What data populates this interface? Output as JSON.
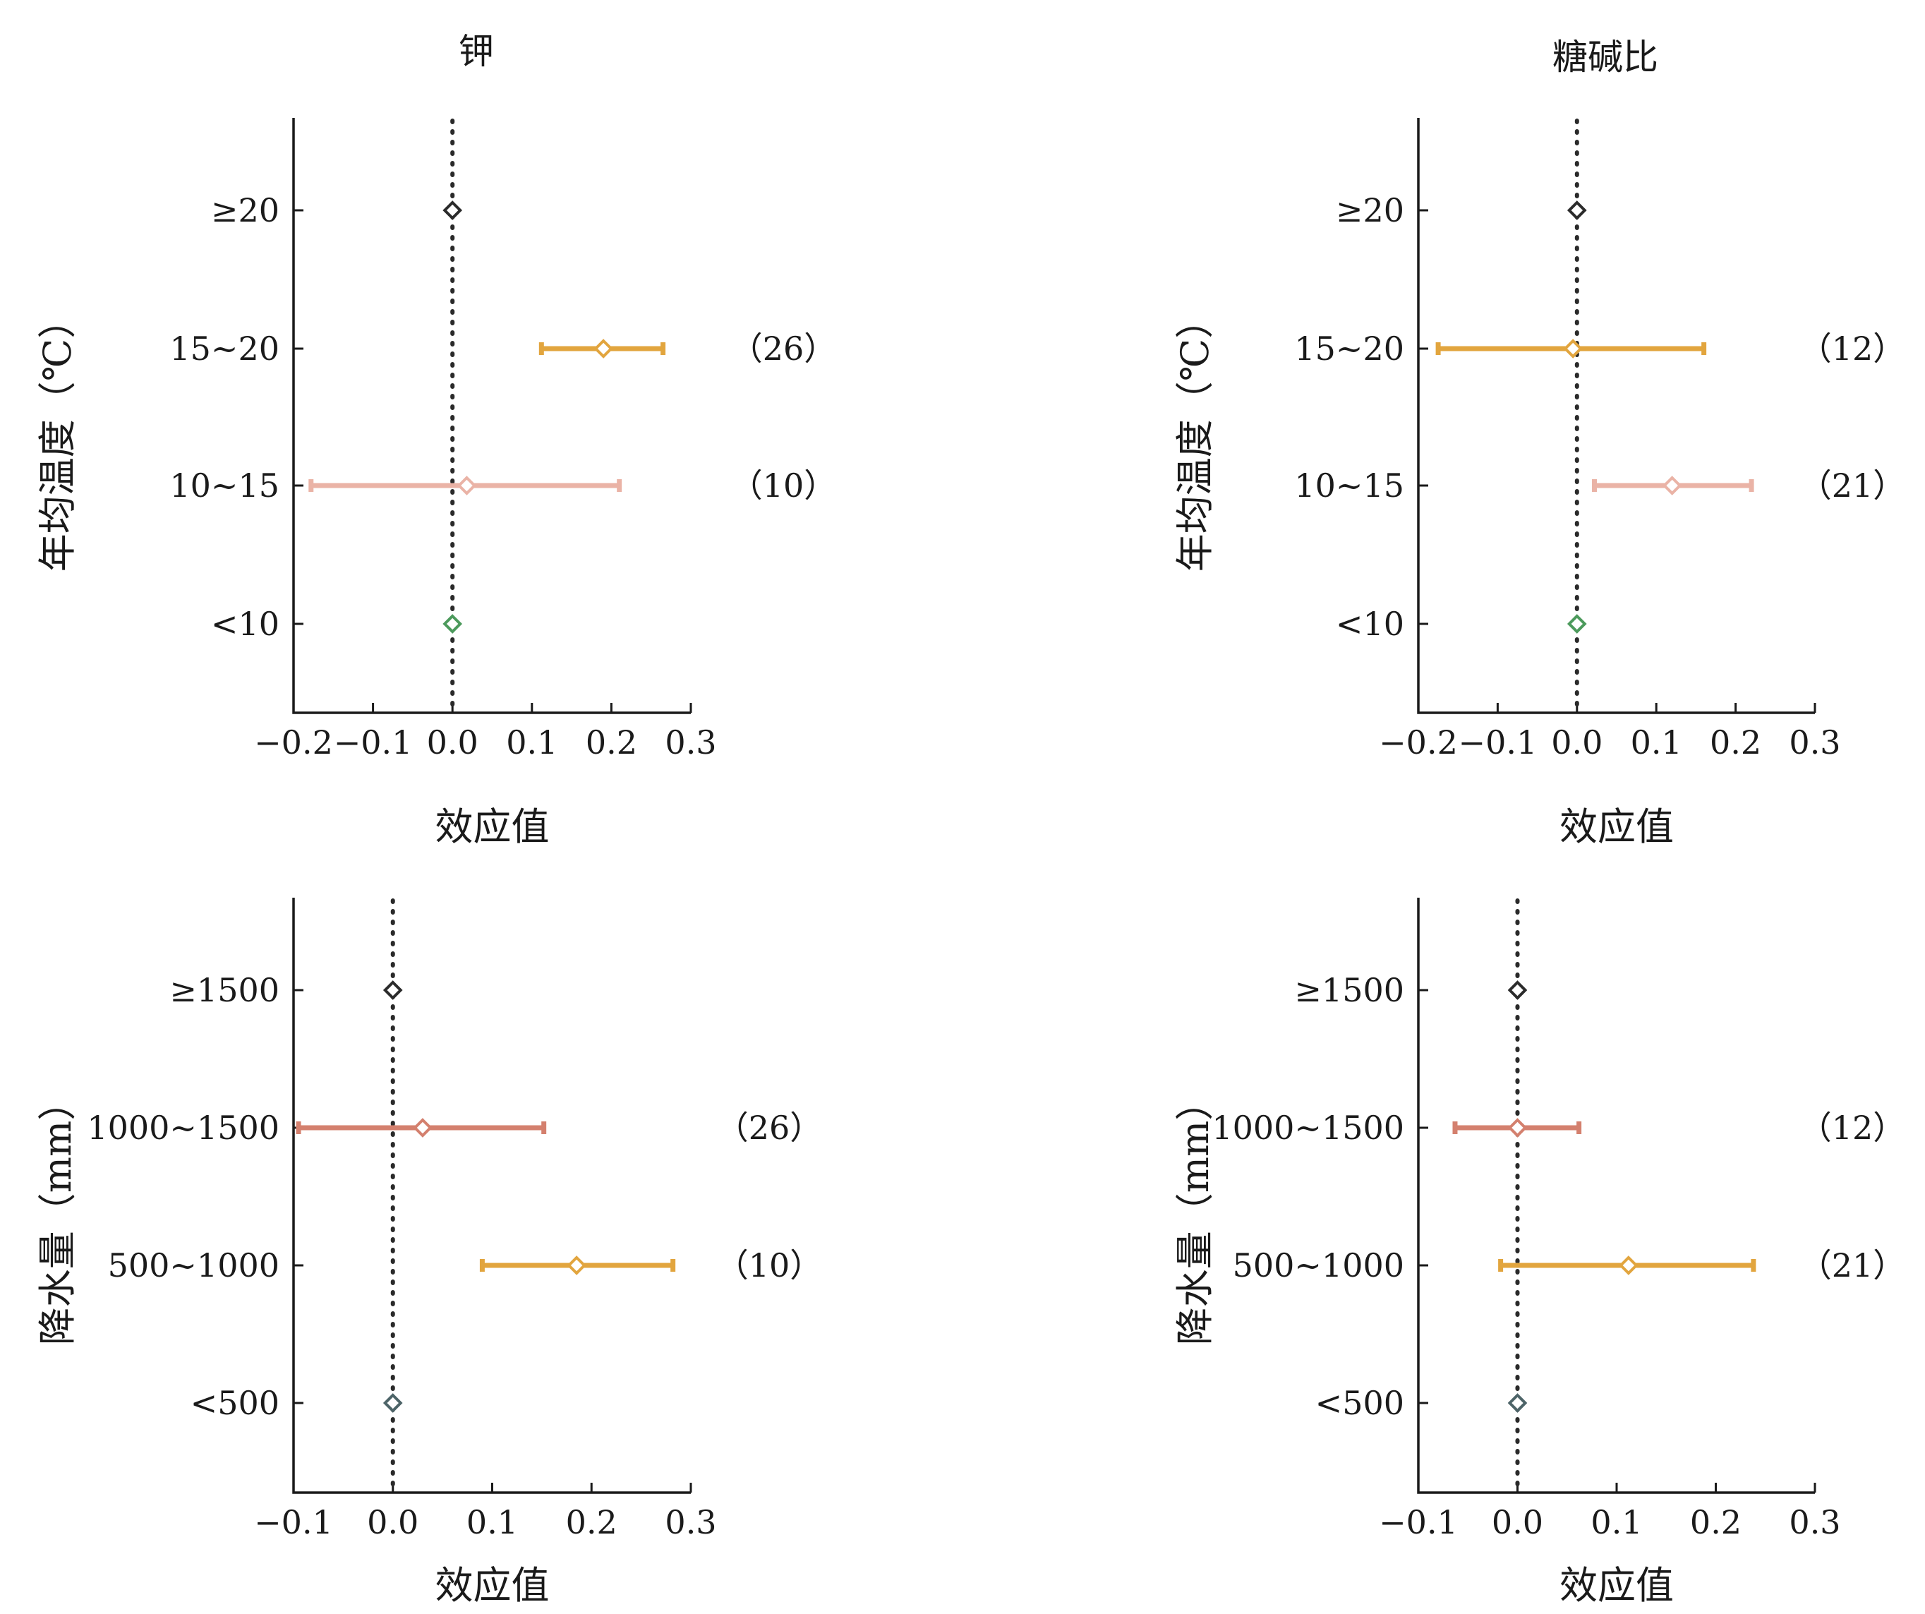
{
  "chart_data": [
    {
      "type": "forest",
      "title": "钾",
      "xlabel": "效应值",
      "ylabel": "年均温度（℃）",
      "xlim": [
        -0.2,
        0.3
      ],
      "xticks": [
        "−0.2",
        "−0.1",
        "0.0",
        "0.1",
        "0.2",
        "0.3"
      ],
      "categories": [
        "≥20",
        "15~20",
        "10~15",
        "<10"
      ],
      "points": [
        {
          "category": "≥20",
          "mean": 0.0,
          "lower": null,
          "upper": null,
          "color": "#2b2b2b",
          "count": ""
        },
        {
          "category": "15~20",
          "mean": 0.19,
          "lower": 0.112,
          "upper": 0.265,
          "color": "#e2a53e",
          "count": "（26）"
        },
        {
          "category": "10~15",
          "mean": 0.018,
          "lower": -0.178,
          "upper": 0.21,
          "color": "#eab3a6",
          "count": "（10）"
        },
        {
          "category": "<10",
          "mean": 0.0,
          "lower": null,
          "upper": null,
          "color": "#4c9a5c",
          "count": ""
        }
      ]
    },
    {
      "type": "forest",
      "title": "糖碱比",
      "xlabel": "效应值",
      "ylabel": "年均温度（℃）",
      "xlim": [
        -0.2,
        0.3
      ],
      "xticks": [
        "−0.2",
        "−0.1",
        "0.0",
        "0.1",
        "0.2",
        "0.3"
      ],
      "categories": [
        "≥20",
        "15~20",
        "10~15",
        "<10"
      ],
      "points": [
        {
          "category": "≥20",
          "mean": 0.0,
          "lower": null,
          "upper": null,
          "color": "#2b2b2b",
          "count": ""
        },
        {
          "category": "15~20",
          "mean": -0.005,
          "lower": -0.175,
          "upper": 0.16,
          "color": "#e2a53e",
          "count": "（12）"
        },
        {
          "category": "10~15",
          "mean": 0.12,
          "lower": 0.022,
          "upper": 0.22,
          "color": "#eab3a6",
          "count": "（21）"
        },
        {
          "category": "<10",
          "mean": 0.0,
          "lower": null,
          "upper": null,
          "color": "#4c9a5c",
          "count": ""
        }
      ]
    },
    {
      "type": "forest",
      "title": "",
      "xlabel": "效应值",
      "ylabel": "降水量（mm）",
      "xlim": [
        -0.1,
        0.3
      ],
      "xticks": [
        "−0.1",
        "0.0",
        "0.1",
        "0.2",
        "0.3"
      ],
      "categories": [
        "≥1500",
        "1000~1500",
        "500~1000",
        "<500"
      ],
      "points": [
        {
          "category": "≥1500",
          "mean": 0.0,
          "lower": null,
          "upper": null,
          "color": "#2b2b2b",
          "count": ""
        },
        {
          "category": "1000~1500",
          "mean": 0.03,
          "lower": -0.095,
          "upper": 0.152,
          "color": "#d4806e",
          "count": "（26）"
        },
        {
          "category": "500~1000",
          "mean": 0.185,
          "lower": 0.09,
          "upper": 0.282,
          "color": "#e2a53e",
          "count": "（10）"
        },
        {
          "category": "<500",
          "mean": 0.0,
          "lower": null,
          "upper": null,
          "color": "#4d6468",
          "count": ""
        }
      ]
    },
    {
      "type": "forest",
      "title": "",
      "xlabel": "效应值",
      "ylabel": "降水量（mm）",
      "xlim": [
        -0.1,
        0.3
      ],
      "xticks": [
        "−0.1",
        "0.0",
        "0.1",
        "0.2",
        "0.3"
      ],
      "categories": [
        "≥1500",
        "1000~1500",
        "500~1000",
        "<500"
      ],
      "points": [
        {
          "category": "≥1500",
          "mean": 0.0,
          "lower": null,
          "upper": null,
          "color": "#2b2b2b",
          "count": ""
        },
        {
          "category": "1000~1500",
          "mean": 0.0,
          "lower": -0.063,
          "upper": 0.062,
          "color": "#d4806e",
          "count": "（12）"
        },
        {
          "category": "500~1000",
          "mean": 0.112,
          "lower": -0.017,
          "upper": 0.238,
          "color": "#e2a53e",
          "count": "（21）"
        },
        {
          "category": "<500",
          "mean": 0.0,
          "lower": null,
          "upper": null,
          "color": "#4d6468",
          "count": ""
        }
      ]
    }
  ]
}
